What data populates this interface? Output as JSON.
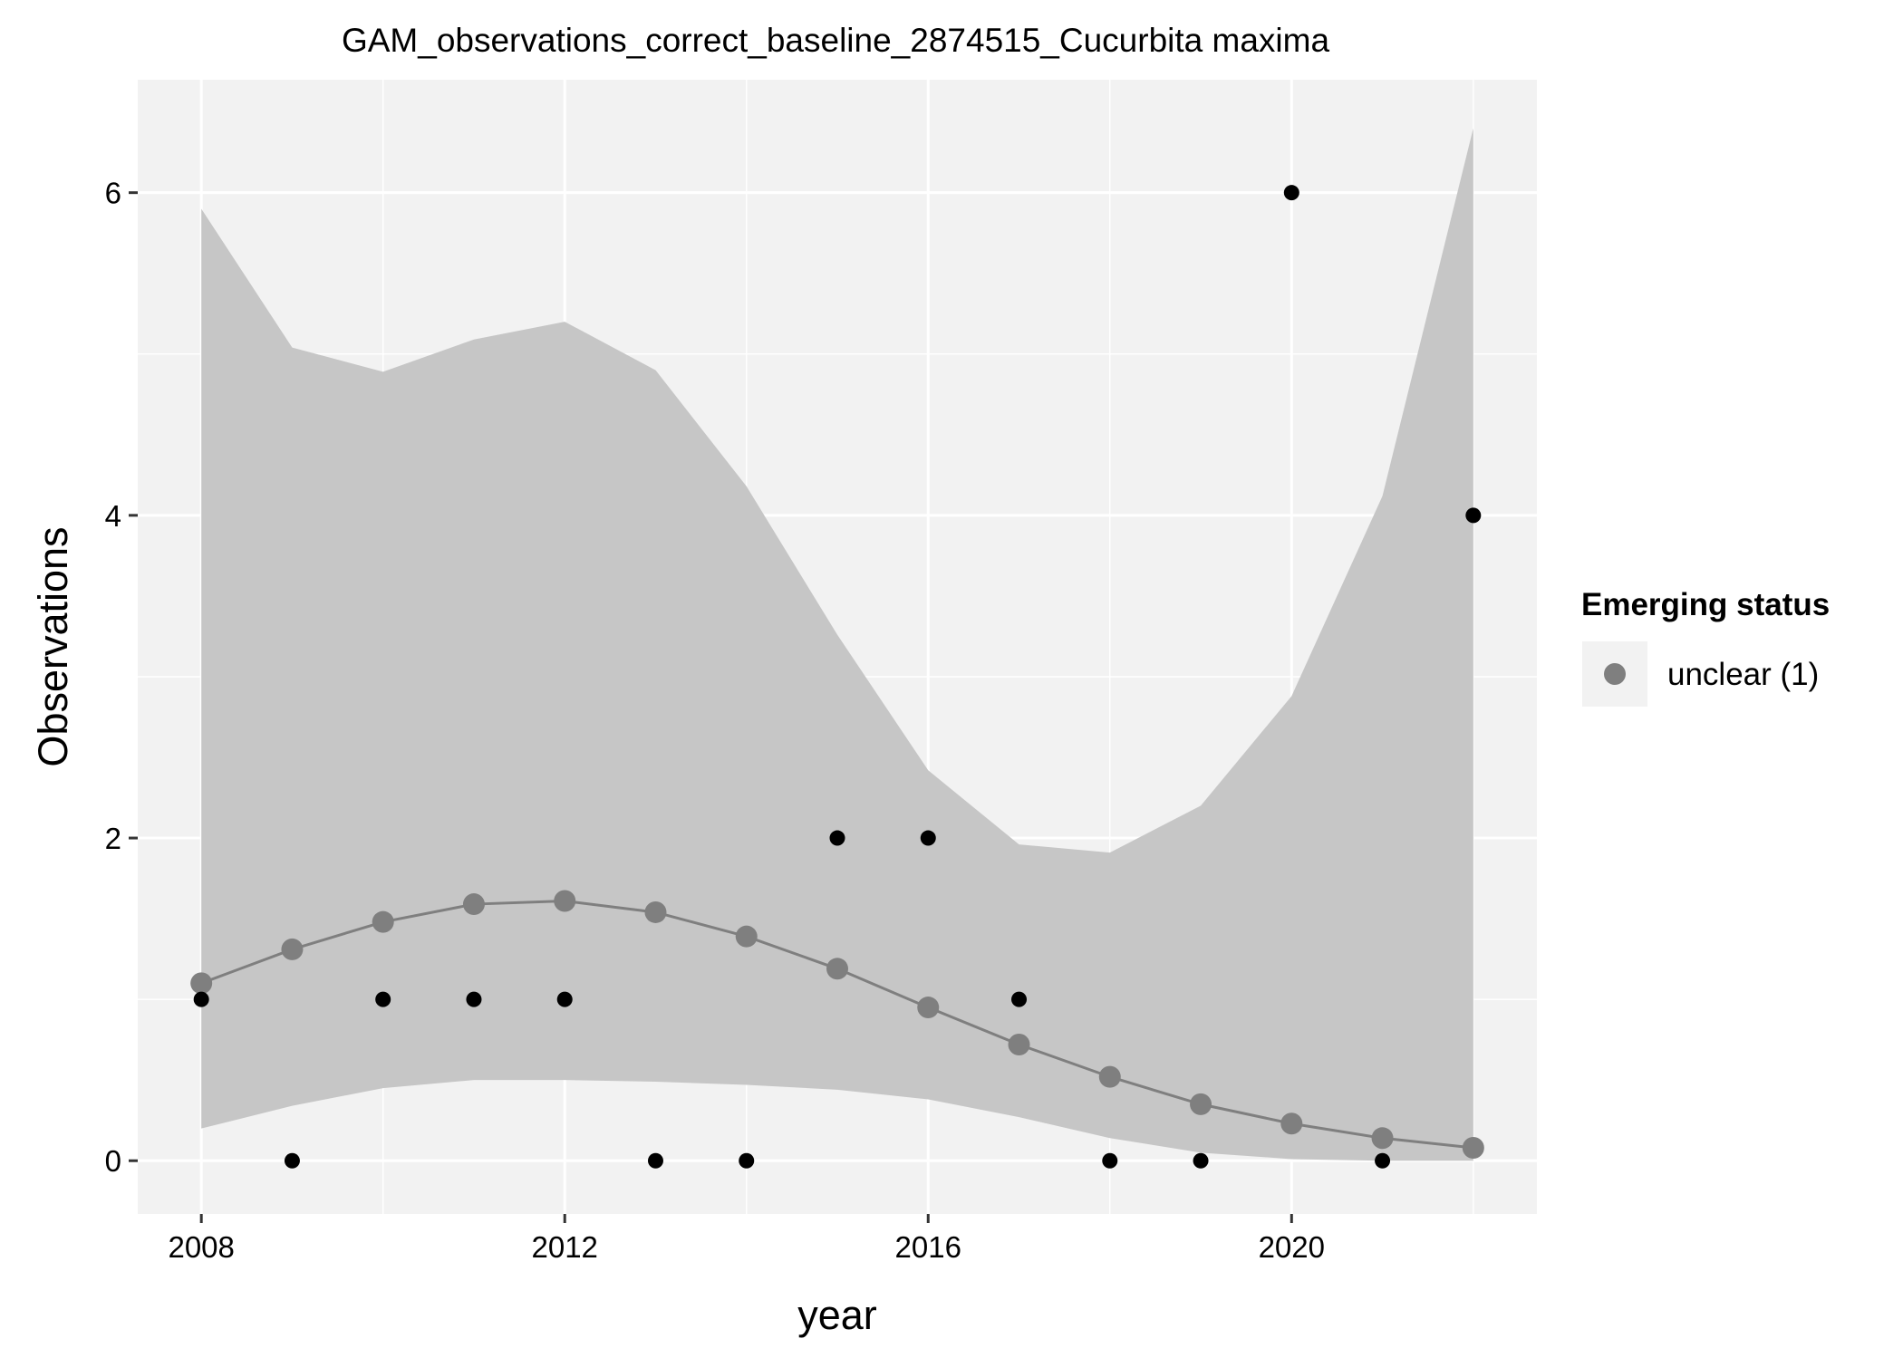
{
  "chart_data": {
    "type": "scatter",
    "title": "GAM_observations_correct_baseline_2874515_Cucurbita maxima",
    "xlabel": "year",
    "ylabel": "Observations",
    "xlim": [
      2007.3,
      2022.7
    ],
    "ylim": [
      -0.33,
      6.7
    ],
    "xticks": [
      2008,
      2012,
      2016,
      2020
    ],
    "yticks": [
      0,
      2,
      4,
      6
    ],
    "grid": true,
    "legend": {
      "title": "Emerging status",
      "position": "right",
      "entries": [
        {
          "label": "unclear (1)",
          "color": "#7f7f7f"
        }
      ]
    },
    "observations": {
      "color": "#000000",
      "points": [
        {
          "x": 2008,
          "y": 1
        },
        {
          "x": 2009,
          "y": 0
        },
        {
          "x": 2010,
          "y": 1
        },
        {
          "x": 2011,
          "y": 1
        },
        {
          "x": 2012,
          "y": 1
        },
        {
          "x": 2013,
          "y": 0
        },
        {
          "x": 2014,
          "y": 0
        },
        {
          "x": 2015,
          "y": 2
        },
        {
          "x": 2016,
          "y": 2
        },
        {
          "x": 2017,
          "y": 1
        },
        {
          "x": 2018,
          "y": 0
        },
        {
          "x": 2019,
          "y": 0
        },
        {
          "x": 2020,
          "y": 6
        },
        {
          "x": 2021,
          "y": 0
        },
        {
          "x": 2022,
          "y": 4
        }
      ]
    },
    "fit": {
      "color": "#7f7f7f",
      "band_color": "#c6c6c6",
      "x": [
        2008,
        2009,
        2010,
        2011,
        2012,
        2013,
        2014,
        2015,
        2016,
        2017,
        2018,
        2019,
        2020,
        2021,
        2022
      ],
      "y": [
        1.1,
        1.31,
        1.48,
        1.59,
        1.61,
        1.54,
        1.39,
        1.19,
        0.95,
        0.72,
        0.52,
        0.35,
        0.23,
        0.14,
        0.08
      ],
      "lower": [
        0.2,
        0.34,
        0.45,
        0.5,
        0.5,
        0.49,
        0.47,
        0.44,
        0.38,
        0.27,
        0.14,
        0.05,
        0.01,
        0.0,
        0.0
      ],
      "upper": [
        5.9,
        5.04,
        4.89,
        5.09,
        5.2,
        4.9,
        4.18,
        3.26,
        2.42,
        1.96,
        1.91,
        2.2,
        2.88,
        4.12,
        6.4
      ]
    },
    "colors": {
      "panel_background": "#f2f2f2",
      "grid_line": "#ffffff"
    }
  }
}
